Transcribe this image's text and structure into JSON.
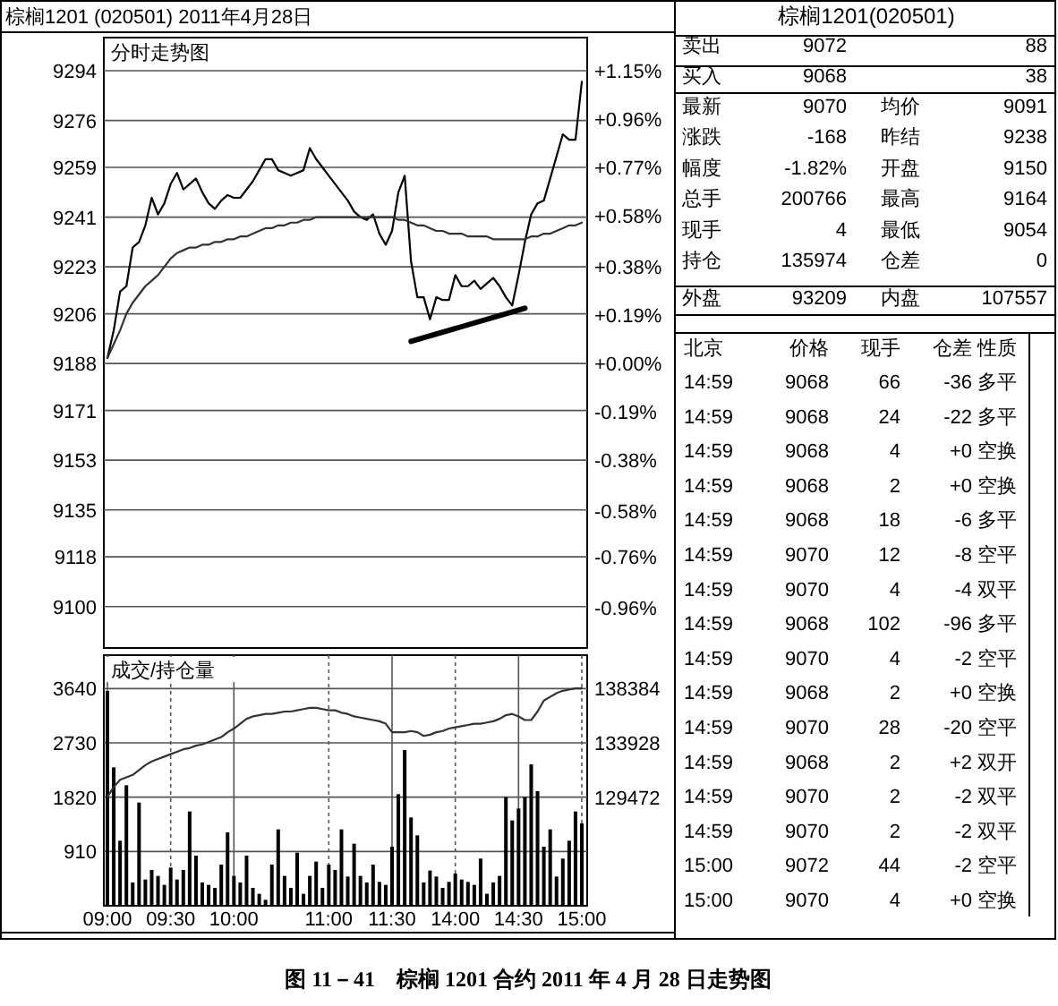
{
  "chart_data": [
    {
      "type": "line",
      "title": "分时走势图",
      "annotations": [
        "棕榈1201 (020501) 2011年4月28日",
        "图 11－41　棕榈 1201 合约 2011 年 4 月 28 日走势图"
      ],
      "categories": [
        null,
        null,
        null,
        null,
        null,
        null,
        null,
        null,
        null,
        null,
        null,
        null,
        null,
        null,
        null,
        null,
        null,
        null,
        null,
        null,
        null,
        null,
        null,
        null,
        null,
        null,
        null,
        null,
        null,
        null,
        null,
        null,
        null,
        null,
        null,
        null,
        null,
        null,
        null,
        null,
        null,
        null,
        null,
        null,
        null,
        null,
        null,
        null,
        null,
        null,
        null,
        null,
        null,
        null,
        null,
        null,
        null,
        null,
        null,
        null,
        null,
        null,
        null,
        null,
        null,
        null,
        null,
        null,
        null,
        null,
        null,
        null,
        null,
        null,
        null,
        null
      ],
      "ylim": [
        9085,
        9306
      ],
      "yticks": [
        9100,
        9118,
        9135,
        9153,
        9171,
        9188,
        9206,
        9223,
        9241,
        9259,
        9276,
        9294
      ],
      "y2lim": [
        -1.12,
        1.28
      ],
      "y2ticks": [
        {
          "value": -0.96,
          "label": "-0.96%"
        },
        {
          "value": -0.76,
          "label": "-0.76%"
        },
        {
          "value": -0.58,
          "label": "-0.58%"
        },
        {
          "value": -0.38,
          "label": "-0.38%"
        },
        {
          "value": -0.19,
          "label": "-0.19%"
        },
        {
          "value": 0,
          "label": "+0.00%"
        },
        {
          "value": 0.19,
          "label": "+0.19%"
        },
        {
          "value": 0.38,
          "label": "+0.38%"
        },
        {
          "value": 0.58,
          "label": "+0.58%"
        },
        {
          "value": 0.77,
          "label": "+0.77%"
        },
        {
          "value": 0.96,
          "label": "+0.96%"
        },
        {
          "value": 1.15,
          "label": "+1.15%"
        }
      ],
      "grid": "y",
      "tick_labels": "y",
      "series": [
        {
          "color": "#000000",
          "values": [
            9190,
            9200,
            9214,
            9216,
            9230,
            9232,
            9238,
            9248,
            9242,
            9246,
            9253,
            9257,
            9251,
            9253,
            9255,
            9250,
            9246,
            9244,
            9247,
            9249,
            9248,
            9248,
            9251,
            9254,
            9258,
            9262,
            9262,
            9258,
            9257,
            9256,
            9257,
            9258,
            9266,
            9262,
            9259,
            9256,
            9253,
            9250,
            9247,
            9243,
            9241,
            9240,
            9242,
            9235,
            9231,
            9236,
            9250,
            9256,
            9225,
            9212,
            9212,
            9204,
            9212,
            9211,
            9211,
            9220,
            9216,
            9216,
            9218,
            9215,
            9217,
            9219,
            9216,
            9212,
            9209,
            9220,
            9232,
            9242,
            9246,
            9247,
            9255,
            9263,
            9271,
            9269,
            9269,
            9290
          ]
        },
        {
          "color": "#333333",
          "values": [
            9190,
            9195,
            9200,
            9206,
            9210,
            9213,
            9216,
            9218,
            9220,
            9223,
            9226,
            9228,
            9229,
            9230,
            9230,
            9231,
            9231,
            9232,
            9232,
            9233,
            9233,
            9234,
            9234,
            9235,
            9236,
            9237,
            9237,
            9238,
            9238,
            9239,
            9239,
            9240,
            9240,
            9241,
            9241,
            9241,
            9241,
            9241,
            9241,
            9241,
            9241,
            9241,
            9241,
            9241,
            9241,
            9241,
            9240,
            9240,
            9239,
            9238,
            9238,
            9237,
            9236,
            9236,
            9235,
            9235,
            9235,
            9234,
            9234,
            9234,
            9234,
            9233,
            9233,
            9233,
            9233,
            9233,
            9233,
            9234,
            9234,
            9235,
            9235,
            9236,
            9237,
            9238,
            9238,
            9239
          ]
        },
        {
          "color": "#000000",
          "values": [
            null,
            null,
            null,
            null,
            null,
            null,
            null,
            null,
            null,
            null,
            null,
            null,
            null,
            null,
            null,
            null,
            null,
            null,
            null,
            null,
            null,
            null,
            null,
            null,
            null,
            null,
            null,
            null,
            null,
            null,
            null,
            null,
            null,
            null,
            null,
            null,
            null,
            null,
            null,
            null,
            null,
            null,
            null,
            null,
            null,
            null,
            null,
            null,
            9196,
            null,
            null,
            null,
            null,
            null,
            null,
            null,
            null,
            null,
            null,
            null,
            null,
            null,
            null,
            null,
            null,
            null,
            9208,
            null,
            null,
            null,
            null,
            null,
            null,
            null,
            null,
            null
          ]
        }
      ]
    },
    {
      "type": "bar",
      "title": "成交/持仓量",
      "categories": [
        "09:00",
        null,
        null,
        null,
        null,
        null,
        null,
        null,
        null,
        null,
        "09:30",
        null,
        null,
        null,
        null,
        null,
        null,
        null,
        null,
        null,
        "10:00",
        null,
        null,
        null,
        null,
        null,
        null,
        null,
        null,
        null,
        null,
        null,
        null,
        null,
        null,
        "11:00",
        null,
        null,
        null,
        null,
        null,
        null,
        null,
        null,
        null,
        "11:30",
        null,
        null,
        null,
        null,
        null,
        null,
        null,
        null,
        null,
        "14:00",
        null,
        null,
        null,
        null,
        null,
        null,
        null,
        null,
        null,
        "14:30",
        null,
        null,
        null,
        null,
        null,
        null,
        null,
        null,
        null,
        "15:00"
      ],
      "ylim": [
        0,
        4200
      ],
      "yticks": [
        910,
        1820,
        2730,
        3640
      ],
      "y2lim": [
        120560,
        141126
      ],
      "y2ticks": [
        129472,
        133928,
        138384
      ],
      "grid": true,
      "series": [
        {
          "color": "#000000",
          "values": [
            3600,
            2320,
            1090,
            2020,
            390,
            1730,
            440,
            600,
            500,
            350,
            640,
            440,
            600,
            1580,
            840,
            390,
            350,
            300,
            690,
            1230,
            500,
            390,
            840,
            300,
            200,
            100,
            690,
            1280,
            500,
            300,
            890,
            200,
            500,
            740,
            300,
            690,
            600,
            1280,
            490,
            1040,
            500,
            390,
            690,
            400,
            350,
            990,
            1870,
            2610,
            1480,
            1180,
            390,
            590,
            490,
            300,
            400,
            540,
            440,
            400,
            350,
            790,
            200,
            390,
            500,
            1820,
            1430,
            1630,
            1820,
            2370,
            1920,
            990,
            1280,
            490,
            790,
            1090,
            1580,
            1380
          ]
        },
        {
          "type": "line",
          "axis": "y2",
          "color": "#333333",
          "values": [
            129500,
            130300,
            130900,
            131100,
            131300,
            131700,
            132100,
            132400,
            132600,
            132800,
            133000,
            133200,
            133400,
            133500,
            133700,
            133800,
            134000,
            134200,
            134400,
            134800,
            135100,
            135500,
            135900,
            136100,
            136200,
            136300,
            136300,
            136400,
            136500,
            136500,
            136600,
            136700,
            136800,
            136800,
            136700,
            136600,
            136600,
            136400,
            136300,
            136100,
            136000,
            135900,
            135800,
            135700,
            135500,
            134800,
            134800,
            134800,
            134900,
            134800,
            134500,
            134600,
            134800,
            134900,
            135100,
            135200,
            135300,
            135400,
            135500,
            135500,
            135600,
            135700,
            135900,
            136200,
            136300,
            136100,
            135800,
            135800,
            136500,
            137400,
            137700,
            138000,
            138200,
            138300,
            138400,
            138400
          ]
        }
      ]
    },
    {
      "type": "other",
      "title": "棕榈1201(020501)",
      "annotations": [
        "卖出",
        "9072",
        "88",
        "买入",
        "9068",
        "38",
        "最新",
        "9070",
        "均价",
        "9091",
        "涨跌",
        "-168",
        "昨结",
        "9238",
        "幅度",
        "-1.82%",
        "开盘",
        "9150",
        "总手",
        "200766",
        "最高",
        "9164",
        "现手",
        "4",
        "最低",
        "9054",
        "持仓",
        "135974",
        "仓差",
        "0",
        "外盘",
        "93209",
        "内盘",
        "107557",
        "北京",
        "价格",
        "现手",
        "仓差",
        "性质",
        "14:59",
        "9068",
        "66",
        "-36",
        "多平",
        "14:59",
        "9068",
        "24",
        "-22",
        "多平",
        "14:59",
        "9068",
        "4",
        "+0",
        "空换",
        "14:59",
        "9068",
        "2",
        "+0",
        "空换",
        "14:59",
        "9068",
        "18",
        "-6",
        "多平",
        "14:59",
        "9070",
        "12",
        "-8",
        "空平",
        "14:59",
        "9070",
        "4",
        "-4",
        "双平",
        "14:59",
        "9068",
        "102",
        "-96",
        "多平",
        "14:59",
        "9070",
        "4",
        "-2",
        "空平",
        "14:59",
        "9068",
        "2",
        "+0",
        "空换",
        "14:59",
        "9070",
        "28",
        "-20",
        "空平",
        "14:59",
        "9068",
        "2",
        "+2",
        "双开",
        "14:59",
        "9070",
        "2",
        "-2",
        "双平",
        "14:59",
        "9070",
        "2",
        "-2",
        "双平",
        "15:00",
        "9072",
        "44",
        "-2",
        "空平",
        "15:00",
        "9070",
        "4",
        "+0",
        "空换"
      ]
    }
  ]
}
